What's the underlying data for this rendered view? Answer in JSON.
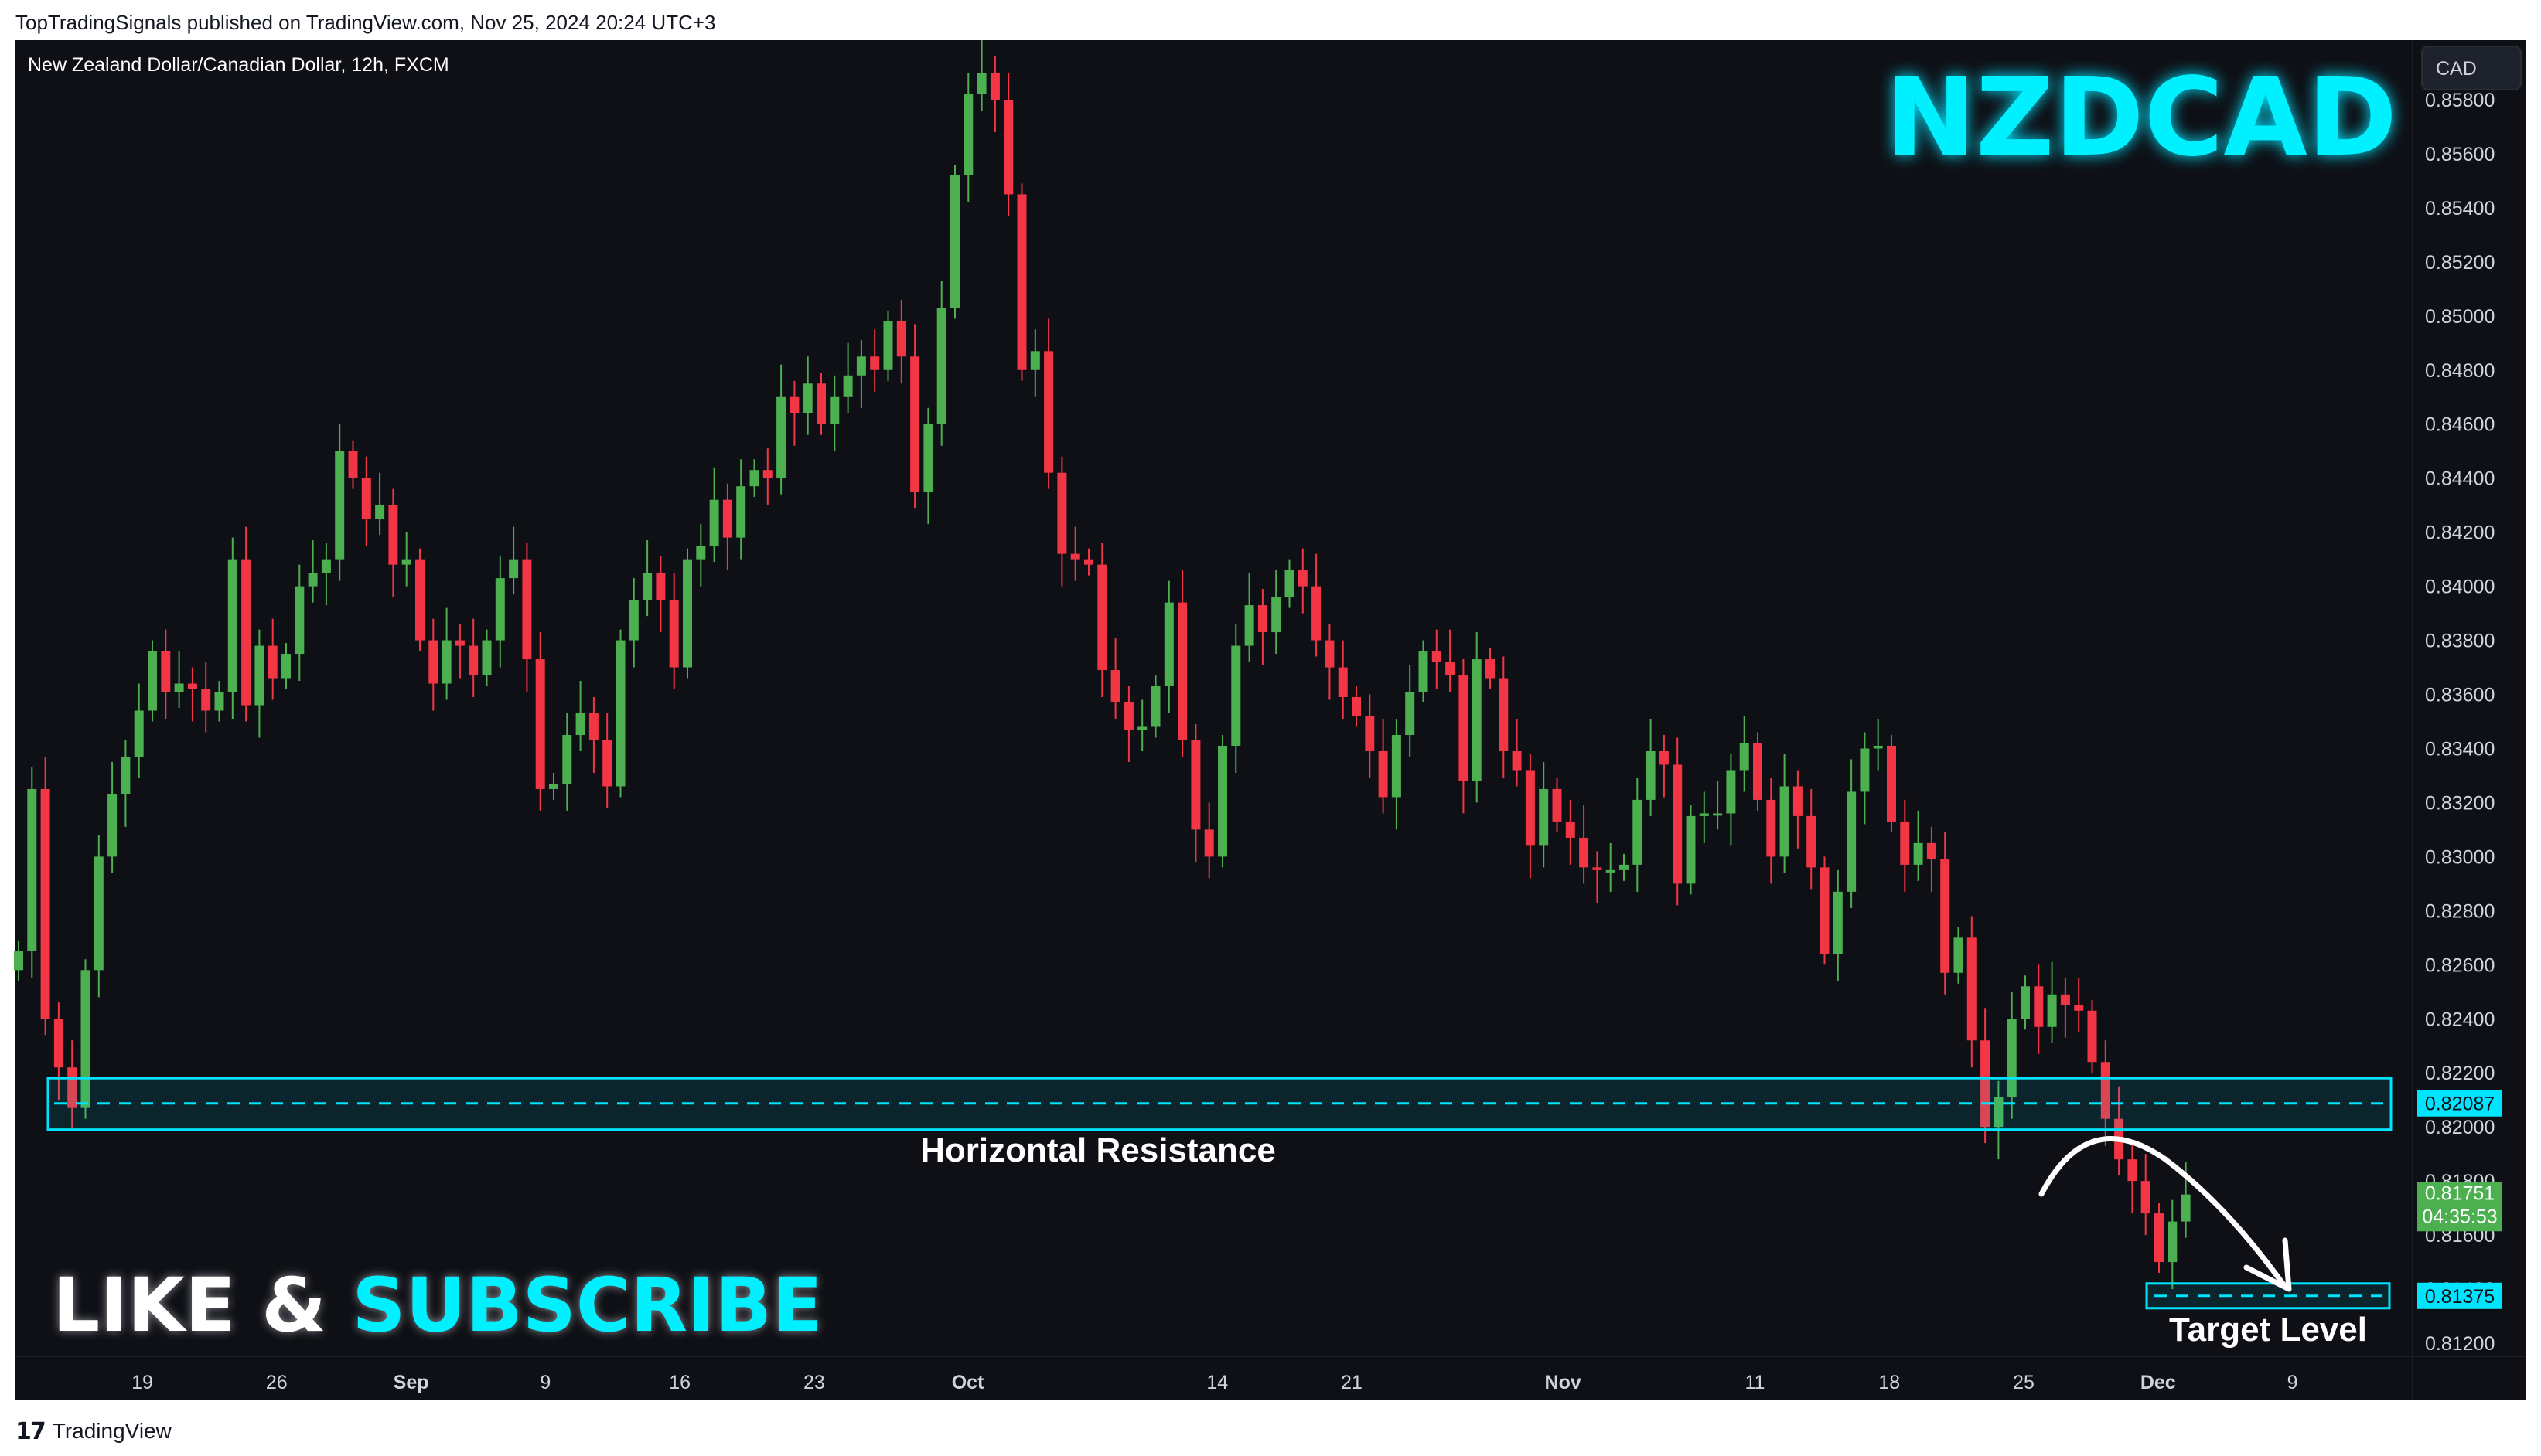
{
  "header": {
    "published_text": "TopTradingSignals published on TradingView.com, Nov 25, 2024 20:24 UTC+3"
  },
  "chart_header": {
    "symbol_description": "New Zealand Dollar/Canadian Dollar, 12h, FXCM"
  },
  "currency_badge": "CAD",
  "big_symbol": "NZDCAD",
  "cta": {
    "like": "LIKE & ",
    "subscribe": "SUBSCRIBE"
  },
  "annotations": {
    "resistance_label": "Horizontal Resistance",
    "target_label": "Target Level"
  },
  "price_badges": {
    "resistance_price": "0.82087",
    "current_price": "0.81751",
    "countdown": "04:35:53",
    "target_price": "0.81375"
  },
  "footer": {
    "brand": "TradingView"
  },
  "colors": {
    "background": "#0e1016",
    "up": "#4caf50",
    "down": "#f23645",
    "accent": "#00e5ff",
    "axis_text": "#d1d4dc"
  },
  "icons": {
    "logo": "tradingview-logo-icon",
    "arrow": "curved-arrow-icon"
  },
  "chart_data": {
    "type": "candlestick",
    "timeframe": "12h",
    "y_axis": {
      "ticks": [
        "0.85800",
        "0.85600",
        "0.85400",
        "0.85200",
        "0.85000",
        "0.84800",
        "0.84600",
        "0.84400",
        "0.84200",
        "0.84000",
        "0.83800",
        "0.83600",
        "0.83400",
        "0.83200",
        "0.83000",
        "0.82800",
        "0.82600",
        "0.82400",
        "0.82200",
        "0.82000",
        "0.81800",
        "0.81600",
        "0.81400",
        "0.81200"
      ],
      "range": [
        0.8115,
        0.8595
      ]
    },
    "x_axis": {
      "ticks": [
        {
          "label": "19",
          "bold": false,
          "date": "2024-08-19"
        },
        {
          "label": "26",
          "bold": false,
          "date": "2024-08-26"
        },
        {
          "label": "Sep",
          "bold": true,
          "date": "2024-09-02"
        },
        {
          "label": "9",
          "bold": false,
          "date": "2024-09-09"
        },
        {
          "label": "16",
          "bold": false,
          "date": "2024-09-16"
        },
        {
          "label": "23",
          "bold": false,
          "date": "2024-09-23"
        },
        {
          "label": "Oct",
          "bold": true,
          "date": "2024-10-01"
        },
        {
          "label": "14",
          "bold": false,
          "date": "2024-10-14"
        },
        {
          "label": "21",
          "bold": false,
          "date": "2024-10-21"
        },
        {
          "label": "Nov",
          "bold": true,
          "date": "2024-11-01"
        },
        {
          "label": "11",
          "bold": false,
          "date": "2024-11-11"
        },
        {
          "label": "18",
          "bold": false,
          "date": "2024-11-18"
        },
        {
          "label": "25",
          "bold": false,
          "date": "2024-11-25"
        },
        {
          "label": "Dec",
          "bold": true,
          "date": "2024-12-02"
        },
        {
          "label": "9",
          "bold": false,
          "date": "2024-12-09"
        }
      ]
    },
    "candles_close": [
      0.8265,
      0.8325,
      0.824,
      0.8222,
      0.8207,
      0.8258,
      0.83,
      0.8323,
      0.8337,
      0.8354,
      0.8376,
      0.8361,
      0.8364,
      0.8362,
      0.8354,
      0.8361,
      0.841,
      0.8356,
      0.8378,
      0.8366,
      0.8375,
      0.84,
      0.8405,
      0.841,
      0.845,
      0.844,
      0.8425,
      0.843,
      0.8408,
      0.841,
      0.838,
      0.8364,
      0.838,
      0.8378,
      0.8367,
      0.838,
      0.8403,
      0.841,
      0.8373,
      0.8325,
      0.8327,
      0.8345,
      0.8353,
      0.8343,
      0.8326,
      0.838,
      0.8395,
      0.8405,
      0.8395,
      0.837,
      0.841,
      0.8415,
      0.8432,
      0.8418,
      0.8437,
      0.8443,
      0.844,
      0.847,
      0.8464,
      0.8475,
      0.846,
      0.847,
      0.8478,
      0.8485,
      0.848,
      0.8498,
      0.8485,
      0.8435,
      0.846,
      0.8503,
      0.8552,
      0.8582,
      0.859,
      0.858,
      0.8545,
      0.848,
      0.8487,
      0.8442,
      0.8412,
      0.841,
      0.8408,
      0.8369,
      0.8357,
      0.8347,
      0.8348,
      0.8363,
      0.8394,
      0.8343,
      0.831,
      0.83,
      0.8341,
      0.8378,
      0.8393,
      0.8383,
      0.8396,
      0.8406,
      0.84,
      0.838,
      0.837,
      0.8359,
      0.8352,
      0.8339,
      0.8322,
      0.8345,
      0.8361,
      0.8376,
      0.8372,
      0.8367,
      0.8328,
      0.8373,
      0.8366,
      0.8339,
      0.8332,
      0.8304,
      0.8325,
      0.8313,
      0.8307,
      0.8296,
      0.8295,
      0.8295,
      0.8297,
      0.8321,
      0.8339,
      0.8334,
      0.829,
      0.8315,
      0.8316,
      0.8316,
      0.8332,
      0.8342,
      0.8321,
      0.83,
      0.8326,
      0.8315,
      0.8296,
      0.8264,
      0.8287,
      0.8324,
      0.834,
      0.8341,
      0.8313,
      0.8297,
      0.8305,
      0.8299,
      0.8257,
      0.827,
      0.8232,
      0.82,
      0.8211,
      0.824,
      0.8252,
      0.8237,
      0.8249,
      0.8245,
      0.8243,
      0.8224,
      0.8203,
      0.8188,
      0.818,
      0.8168,
      0.815,
      0.8165,
      0.8175
    ],
    "resistance_zone": {
      "low": 0.8199,
      "high": 0.8218,
      "level": 0.82087
    },
    "target_level": 0.81375,
    "current_price": 0.81751
  }
}
